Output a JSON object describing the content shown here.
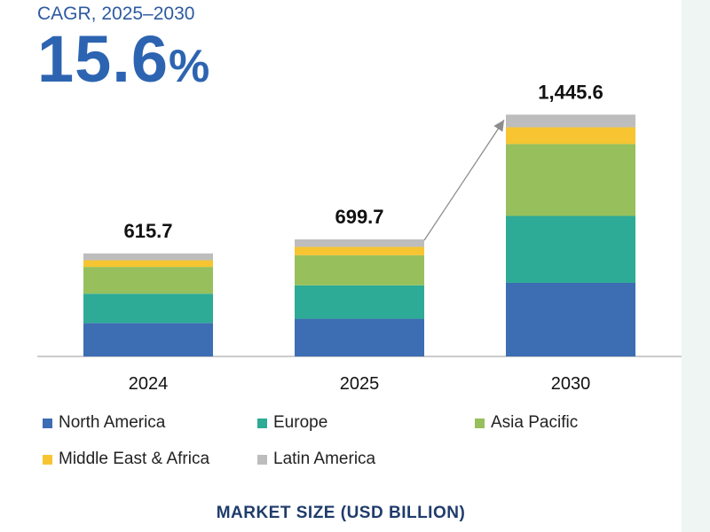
{
  "header": {
    "cagr_label": "CAGR, 2025–2030",
    "cagr_value": "15.6",
    "cagr_unit": "%"
  },
  "chart_data": {
    "type": "bar",
    "stacked": true,
    "title": "MARKET SIZE (USD BILLION)",
    "categories": [
      "2024",
      "2025",
      "2030"
    ],
    "totals": [
      615.7,
      699.7,
      1445.6
    ],
    "total_labels": [
      "615.7",
      "699.7",
      "1,445.6"
    ],
    "series": [
      {
        "name": "North America",
        "color": "#3d6db3",
        "values": [
          200,
          225,
          440
        ]
      },
      {
        "name": "Europe",
        "color": "#2eab96",
        "values": [
          175,
          200,
          400
        ]
      },
      {
        "name": "Asia Pacific",
        "color": "#97c05c",
        "values": [
          160,
          180,
          430
        ]
      },
      {
        "name": "Middle East & Africa",
        "color": "#f7c531",
        "values": [
          40,
          50,
          100
        ]
      },
      {
        "name": "Latin America",
        "color": "#bdbdbd",
        "values": [
          40.7,
          44.7,
          75.6
        ]
      }
    ],
    "ylim": [
      0,
      1500
    ],
    "annotation": "arrow from 2025 total to 2030 total"
  },
  "footer": {
    "title": "MARKET SIZE (USD BILLION)"
  }
}
